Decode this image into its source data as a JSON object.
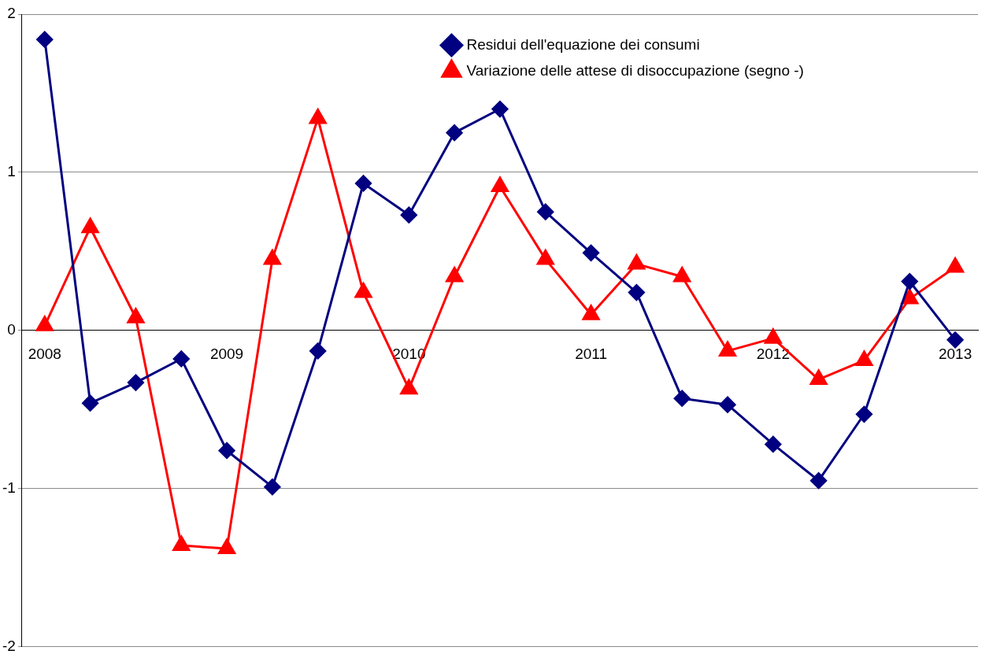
{
  "chart_data": {
    "type": "line",
    "categories": [
      "2008",
      null,
      null,
      null,
      "2009",
      null,
      null,
      null,
      "2010",
      null,
      null,
      null,
      "2011",
      null,
      null,
      null,
      "2012",
      null,
      null,
      null,
      "2013"
    ],
    "series": [
      {
        "name": "Residui dell'equazione dei consumi",
        "color": "#000080",
        "marker": "diamond",
        "values": [
          1.84,
          -0.46,
          -0.33,
          -0.18,
          -0.76,
          -0.99,
          -0.13,
          0.93,
          0.73,
          1.25,
          1.4,
          0.75,
          0.49,
          0.24,
          -0.43,
          -0.47,
          -0.72,
          -0.95,
          -0.53,
          0.31,
          -0.06
        ]
      },
      {
        "name": "Variazione delle attese di disoccupazione (segno -)",
        "color": "#ff0000",
        "marker": "triangle",
        "values": [
          0.03,
          0.65,
          0.08,
          -1.36,
          -1.38,
          0.45,
          1.34,
          0.24,
          -0.37,
          0.34,
          0.91,
          0.45,
          0.1,
          0.42,
          0.34,
          -0.13,
          -0.05,
          -0.31,
          -0.19,
          0.2,
          0.4
        ]
      }
    ],
    "ylim": [
      -2,
      2
    ],
    "yticks": [
      -2,
      -1,
      0,
      1,
      2
    ],
    "grid": "y",
    "legend": "top right",
    "line_style": "solid"
  }
}
